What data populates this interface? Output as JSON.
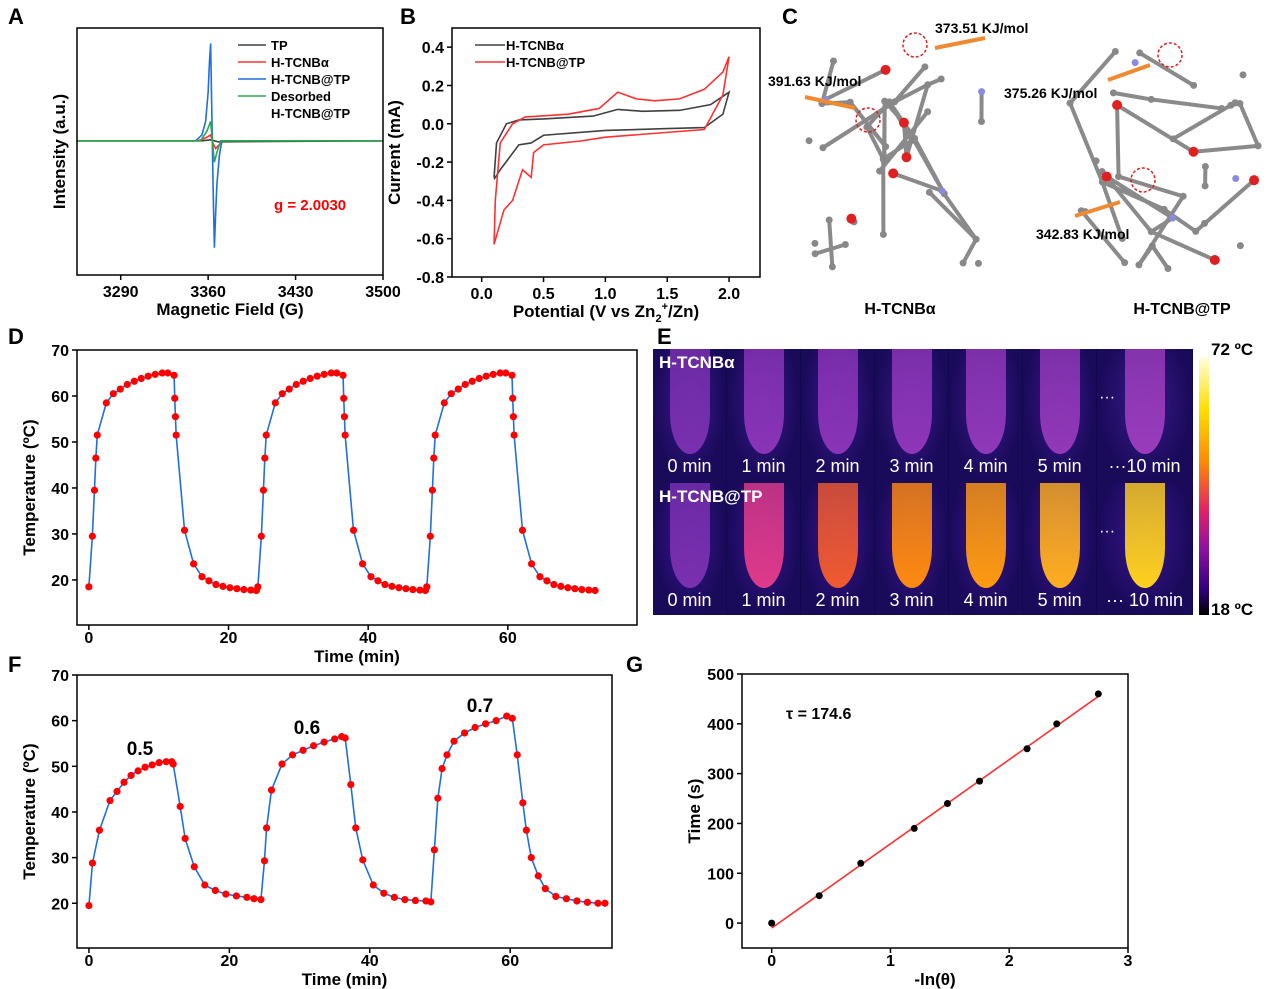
{
  "panel_labels": [
    "A",
    "B",
    "C",
    "D",
    "E",
    "F",
    "G"
  ],
  "chart_data": [
    {
      "id": "A",
      "type": "line",
      "xlabel": "Magnetic Field (G)",
      "ylabel": "Intensity (a.u.)",
      "xlim": [
        3255,
        3500
      ],
      "ylim": [
        -1.38,
        1.16
      ],
      "xticks": [
        3290,
        3360,
        3430,
        3500
      ],
      "yticks": [],
      "legend": "top-right",
      "annotation": "g = 2.0030",
      "annotation_color": "#ff0000",
      "series": [
        {
          "name": "TP",
          "color": "#404040",
          "x": [
            3255,
            3355,
            3362,
            3368,
            3500
          ],
          "y": [
            0,
            0,
            0.01,
            -0.01,
            0
          ]
        },
        {
          "name": "H-TCNBα",
          "color": "#ff3030",
          "x": [
            3255,
            3352,
            3358,
            3362,
            3364,
            3366,
            3369,
            3372,
            3500
          ],
          "y": [
            0,
            0,
            0.03,
            0.06,
            -0.03,
            -0.08,
            -0.04,
            0,
            0
          ]
        },
        {
          "name": "H-TCNB@TP",
          "color": "#1f6fe0",
          "x": [
            3255,
            3350,
            3355,
            3358,
            3360,
            3361,
            3362,
            3363,
            3364,
            3365,
            3366,
            3367,
            3369,
            3371,
            3500
          ],
          "y": [
            0,
            0,
            0.06,
            0.2,
            0.5,
            0.8,
            1.0,
            0.25,
            -0.5,
            -1.1,
            -0.75,
            -0.45,
            -0.15,
            0,
            0
          ]
        },
        {
          "name": "Desorbed H-TCNB@TP",
          "color": "#2aa84a",
          "x": [
            3255,
            3354,
            3359,
            3362,
            3363,
            3365,
            3367,
            3370,
            3500
          ],
          "y": [
            0,
            0,
            0.1,
            0.2,
            0.05,
            -0.22,
            -0.12,
            0,
            0
          ]
        }
      ]
    },
    {
      "id": "B",
      "type": "line",
      "xlabel": "Potential (V vs Zn2+/Zn)",
      "ylabel": "Current (mA)",
      "xlim": [
        -0.24,
        2.25
      ],
      "ylim": [
        -0.8,
        0.5
      ],
      "xticks": [
        0.0,
        0.5,
        1.0,
        1.5,
        2.0
      ],
      "yticks": [
        -0.8,
        -0.6,
        -0.4,
        -0.2,
        0.0,
        0.2,
        0.4
      ],
      "legend": "top-left",
      "series": [
        {
          "name": "H-TCNBα",
          "color": "#404040",
          "x": [
            0.1,
            0.12,
            0.2,
            0.3,
            0.5,
            0.9,
            1.1,
            1.3,
            1.6,
            1.85,
            2.0,
            1.95,
            1.8,
            1.5,
            1.0,
            0.5,
            0.4,
            0.3,
            0.15,
            0.1
          ],
          "y": [
            -0.28,
            -0.1,
            0.0,
            0.02,
            0.025,
            0.04,
            0.075,
            0.065,
            0.07,
            0.1,
            0.165,
            0.05,
            -0.02,
            -0.025,
            -0.035,
            -0.06,
            -0.1,
            -0.11,
            -0.24,
            -0.29
          ]
        },
        {
          "name": "H-TCNB@TP",
          "color": "#ff3030",
          "x": [
            0.1,
            0.11,
            0.15,
            0.25,
            0.35,
            0.7,
            0.95,
            1.1,
            1.25,
            1.4,
            1.6,
            1.8,
            1.95,
            2.0,
            1.95,
            1.8,
            1.5,
            1.0,
            0.8,
            0.5,
            0.42,
            0.4,
            0.33,
            0.25,
            0.18,
            0.1
          ],
          "y": [
            -0.63,
            -0.4,
            -0.1,
            0.0,
            0.035,
            0.05,
            0.08,
            0.165,
            0.13,
            0.12,
            0.13,
            0.18,
            0.27,
            0.35,
            0.15,
            -0.03,
            -0.045,
            -0.07,
            -0.09,
            -0.11,
            -0.15,
            -0.28,
            -0.24,
            -0.4,
            -0.45,
            -0.63
          ]
        }
      ]
    },
    {
      "id": "D",
      "type": "line",
      "xlabel": "Time (min)",
      "ylabel": "Temperature (ºC)",
      "xlim": [
        -1.7,
        78.5
      ],
      "ylim": [
        10.2,
        70
      ],
      "xticks": [
        0,
        20,
        40,
        60
      ],
      "yticks": [
        20,
        30,
        40,
        50,
        60,
        70
      ],
      "line_color": "#1f6fe0",
      "marker_color": "#ff0000",
      "series": [
        {
          "x": [
            0,
            0.5,
            0.8,
            1,
            1.2,
            2.5,
            3.5,
            4.5,
            5.5,
            6.5,
            7.5,
            8.5,
            9.5,
            10.5,
            11.3,
            12.2,
            12.3,
            12.4,
            12.5,
            13.7,
            15,
            16.2,
            17.2,
            18.2,
            19.2,
            20.2,
            21.2,
            22.2,
            23.2,
            24,
            24.2,
            24.7,
            25,
            25.2,
            25.4,
            26.7,
            27.7,
            28.7,
            29.7,
            30.7,
            31.7,
            32.7,
            33.7,
            34.7,
            35.5,
            36.4,
            36.5,
            36.6,
            36.7,
            37.9,
            39.2,
            40.4,
            41.4,
            42.4,
            43.4,
            44.4,
            45.4,
            46.4,
            47.4,
            48.2,
            48.4,
            48.9,
            49.2,
            49.4,
            49.6,
            50.9,
            51.9,
            52.9,
            53.9,
            54.9,
            55.9,
            56.9,
            57.9,
            58.9,
            59.7,
            60.6,
            60.7,
            60.8,
            60.9,
            62.1,
            63.4,
            64.6,
            65.6,
            66.6,
            67.6,
            68.6,
            69.6,
            70.6,
            71.6,
            72.5
          ],
          "y": [
            18.5,
            29.5,
            39.5,
            46.5,
            51.5,
            58.5,
            60.5,
            61.5,
            62.5,
            63.2,
            63.8,
            64.3,
            64.7,
            65,
            65,
            64.5,
            59.5,
            55.5,
            51.5,
            30.8,
            23.5,
            20.7,
            19.8,
            19,
            18.6,
            18.3,
            18.1,
            17.9,
            17.8,
            17.7,
            18.5,
            29.5,
            39.5,
            46.5,
            51.5,
            58.5,
            60.5,
            61.5,
            62.5,
            63.2,
            63.8,
            64.3,
            64.7,
            65,
            65,
            64.5,
            59.5,
            55.5,
            51.5,
            30.8,
            23.5,
            20.7,
            19.8,
            19,
            18.6,
            18.3,
            18.1,
            17.9,
            17.8,
            17.7,
            18.5,
            29.5,
            39.5,
            46.5,
            51.5,
            58.5,
            60.5,
            61.5,
            62.5,
            63.2,
            63.8,
            64.3,
            64.7,
            65,
            65,
            64.5,
            59.5,
            55.5,
            51.5,
            30.8,
            23.5,
            20.7,
            19.8,
            19,
            18.6,
            18.3,
            18.1,
            17.9,
            17.8,
            17.7
          ]
        }
      ]
    },
    {
      "id": "F",
      "type": "line",
      "xlabel": "Time (min)",
      "ylabel": "Temperature (ºC)",
      "xlim": [
        -1.7,
        74.5
      ],
      "ylim": [
        10.2,
        70
      ],
      "xticks": [
        0,
        20,
        40,
        60
      ],
      "yticks": [
        20,
        30,
        40,
        50,
        60,
        70
      ],
      "line_color": "#1f6fe0",
      "marker_color": "#ff0000",
      "labels": [
        "0.5",
        "0.6",
        "0.7"
      ],
      "series": [
        {
          "x": [
            0,
            0.5,
            1.5,
            3,
            4,
            5,
            6,
            7,
            8,
            9,
            10,
            11,
            11.8,
            12,
            13,
            13.7,
            15,
            16.5,
            18,
            19.5,
            21,
            22.5,
            23.5,
            24.5,
            25,
            25.3,
            26,
            27.5,
            29,
            30.5,
            32,
            33.5,
            35,
            36,
            36.5,
            37.3,
            38,
            39,
            40.5,
            42,
            43.5,
            45,
            46.5,
            48,
            48.7,
            49.2,
            49.7,
            50.3,
            51,
            52,
            53.5,
            55,
            56.5,
            58,
            59.5,
            60.3,
            61,
            61.8,
            62.3,
            63,
            64,
            65,
            66.5,
            68,
            69.5,
            71,
            72.5,
            73.5
          ],
          "y": [
            19.5,
            28.8,
            36,
            42.5,
            44.5,
            46.5,
            48,
            49,
            49.8,
            50.3,
            50.8,
            51,
            51,
            50.5,
            41.2,
            34.2,
            28,
            24,
            22.8,
            22,
            21.6,
            21.3,
            21,
            20.8,
            29.3,
            36.5,
            44.8,
            50.5,
            52.5,
            53.5,
            54.5,
            55.3,
            56,
            56.5,
            56.2,
            46,
            36.5,
            29.5,
            24,
            22.2,
            21.3,
            20.8,
            20.6,
            20.5,
            20.3,
            31.7,
            43,
            49.5,
            52.5,
            55.5,
            57.3,
            58.5,
            59.3,
            60,
            61,
            60.5,
            52.5,
            42,
            36,
            30,
            26,
            23.2,
            21.5,
            21,
            20.5,
            20.2,
            20,
            20
          ]
        }
      ]
    },
    {
      "id": "G",
      "type": "scatter",
      "xlabel": "-ln(θ)",
      "ylabel": "Time (s)",
      "xlim": [
        -0.25,
        3
      ],
      "ylim": [
        -50,
        500
      ],
      "xticks": [
        0,
        1,
        2,
        3
      ],
      "yticks": [
        0,
        100,
        200,
        300,
        400,
        500
      ],
      "annotation": "τ = 174.6",
      "points": {
        "x": [
          0,
          0.4,
          0.75,
          1.2,
          1.48,
          1.75,
          2.15,
          2.4,
          2.75
        ],
        "y": [
          0,
          55,
          120,
          190,
          240,
          285,
          350,
          400,
          460
        ],
        "color": "#000000"
      },
      "fit": {
        "x": [
          0,
          2.75
        ],
        "y": [
          -10,
          455
        ],
        "color": "#ff3030"
      }
    }
  ],
  "panelC": {
    "energies": [
      "373.51 KJ/mol",
      "391.63 KJ/mol",
      "375.26 KJ/mol",
      "342.83 KJ/mol"
    ],
    "names": [
      "H-TCNBα",
      "H-TCNB@TP"
    ],
    "arrow_color": "#f08a30"
  },
  "panelE": {
    "rows": [
      {
        "label": "H-TCNBα",
        "times": [
          "0 min",
          "1 min",
          "2 min",
          "3 min",
          "4 min",
          "5 min",
          "···10 min"
        ],
        "tube_colors": [
          "#7a30b0",
          "#8a34b8",
          "#8a34b8",
          "#8e36b8",
          "#9038b8",
          "#9238b8",
          "#9a3cbc"
        ]
      },
      {
        "label": "H-TCNB@TP",
        "times": [
          "0 min",
          "1 min",
          "2 min",
          "3 min",
          "4 min",
          "5 min",
          "··· 10 min"
        ],
        "tube_colors": [
          "#7a30b0",
          "#e03a8a",
          "#f05a30",
          "#ff8a10",
          "#ff9a10",
          "#ffae20",
          "#ffd020"
        ]
      }
    ],
    "dots": "···",
    "colorbar": {
      "max": "72 ºC",
      "min": "18 ºC"
    }
  }
}
